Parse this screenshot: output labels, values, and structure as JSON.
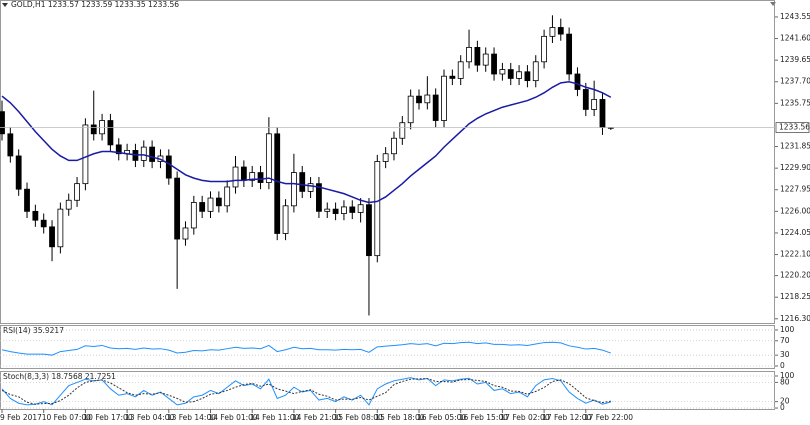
{
  "chart_data": [
    {
      "type": "candlestick",
      "title": "GOLD,H1 1233.57 1233.59 1233.35 1233.56",
      "categories": [
        "9 Feb 2017",
        null,
        null,
        null,
        null,
        "10 Feb 07:00",
        null,
        null,
        null,
        null,
        "10 Feb 17:00",
        null,
        null,
        null,
        null,
        "13 Feb 04:00",
        null,
        null,
        null,
        null,
        "13 Feb 14:00",
        null,
        null,
        null,
        null,
        "14 Feb 01:00",
        null,
        null,
        null,
        null,
        "14 Feb 11:00",
        null,
        null,
        null,
        null,
        "14 Feb 21:00",
        null,
        null,
        null,
        null,
        "15 Feb 08:00",
        null,
        null,
        null,
        null,
        "15 Feb 18:00",
        null,
        null,
        null,
        null,
        "16 Feb 05:00",
        null,
        null,
        null,
        null,
        "16 Feb 15:00",
        null,
        null,
        null,
        null,
        "17 Feb 02:00",
        null,
        null,
        null,
        null,
        "17 Feb 12:00",
        null,
        null,
        null,
        null,
        "17 Feb 22:00",
        null,
        null,
        null
      ],
      "open": [
        1235.0,
        1233.0,
        1231.0,
        1228.0,
        1226.0,
        1225.2,
        1224.6,
        1222.8,
        1226.2,
        1227.0,
        1228.5,
        1233.8,
        1233.0,
        1234.2,
        1232.0,
        1231.2,
        1231.5,
        1230.6,
        1231.8,
        1230.5,
        1231.0,
        1229.0,
        1223.5,
        1224.5,
        1226.8,
        1226.0,
        1227.2,
        1226.5,
        1228.2,
        1230.0,
        1228.8,
        1229.5,
        1228.6,
        1233.0,
        1224.0,
        1226.5,
        1229.5,
        1227.8,
        1228.5,
        1226.0,
        1226.2,
        1225.8,
        1226.4,
        1225.9,
        1226.6,
        1222.0,
        1230.5,
        1231.2,
        1232.6,
        1234.0,
        1236.4,
        1235.8,
        1236.5,
        1234.2,
        1238.2,
        1238.0,
        1239.5,
        1240.8,
        1239.2,
        1240.2,
        1238.4,
        1238.8,
        1238.0,
        1238.6,
        1237.8,
        1239.5,
        1241.8,
        1242.6,
        1242.0,
        1238.4,
        1237.0,
        1235.2,
        1236.1,
        1233.57
      ],
      "high": [
        1236.0,
        1233.6,
        1231.6,
        1228.6,
        1226.6,
        1225.8,
        1225.2,
        1226.8,
        1227.6,
        1229.1,
        1234.4,
        1236.9,
        1234.8,
        1234.8,
        1232.6,
        1232.1,
        1232.1,
        1232.4,
        1232.4,
        1231.6,
        1231.6,
        1229.6,
        1225.1,
        1227.4,
        1227.4,
        1227.8,
        1227.8,
        1228.8,
        1231.0,
        1230.6,
        1230.1,
        1230.1,
        1234.5,
        1233.6,
        1227.1,
        1231.2,
        1230.1,
        1229.1,
        1229.1,
        1226.8,
        1226.8,
        1227.0,
        1227.0,
        1227.2,
        1227.2,
        1231.1,
        1231.8,
        1233.2,
        1234.6,
        1237.0,
        1237.0,
        1238.2,
        1237.1,
        1238.8,
        1238.8,
        1240.1,
        1242.4,
        1241.4,
        1240.8,
        1240.8,
        1239.4,
        1239.4,
        1239.2,
        1239.2,
        1240.1,
        1242.4,
        1243.7,
        1243.4,
        1242.6,
        1239.0,
        1237.6,
        1237.8,
        1236.7,
        1233.59
      ],
      "low": [
        1232.4,
        1230.4,
        1227.4,
        1225.4,
        1224.6,
        1224.0,
        1221.5,
        1222.2,
        1225.6,
        1226.4,
        1227.9,
        1232.4,
        1232.4,
        1231.4,
        1230.6,
        1230.6,
        1230.0,
        1230.0,
        1229.9,
        1229.9,
        1228.4,
        1219.0,
        1222.9,
        1223.9,
        1225.4,
        1225.4,
        1225.9,
        1225.9,
        1227.6,
        1228.2,
        1228.2,
        1228.0,
        1228.0,
        1223.4,
        1223.4,
        1225.9,
        1227.2,
        1227.2,
        1225.4,
        1225.4,
        1225.2,
        1225.2,
        1225.3,
        1225.0,
        1216.6,
        1221.4,
        1229.9,
        1230.6,
        1232.0,
        1233.4,
        1235.2,
        1235.2,
        1233.6,
        1233.6,
        1237.4,
        1237.4,
        1238.9,
        1238.6,
        1238.6,
        1237.8,
        1237.8,
        1237.4,
        1237.4,
        1237.2,
        1237.2,
        1238.9,
        1241.2,
        1241.4,
        1237.8,
        1236.4,
        1234.6,
        1234.6,
        1232.9,
        1233.35
      ],
      "close": [
        1233.0,
        1231.0,
        1228.0,
        1226.0,
        1225.2,
        1224.6,
        1222.8,
        1226.2,
        1227.0,
        1228.5,
        1233.8,
        1233.0,
        1234.2,
        1232.0,
        1231.2,
        1231.5,
        1230.6,
        1231.8,
        1230.5,
        1231.0,
        1229.0,
        1223.5,
        1224.5,
        1226.8,
        1226.0,
        1227.2,
        1226.5,
        1228.2,
        1230.0,
        1228.8,
        1229.5,
        1228.6,
        1233.0,
        1224.0,
        1226.5,
        1229.5,
        1227.8,
        1228.5,
        1226.0,
        1226.2,
        1225.8,
        1226.4,
        1225.9,
        1226.6,
        1222.0,
        1230.5,
        1231.2,
        1232.6,
        1234.0,
        1236.4,
        1235.8,
        1236.5,
        1234.2,
        1238.2,
        1238.0,
        1239.5,
        1240.8,
        1239.2,
        1240.2,
        1238.4,
        1238.8,
        1238.0,
        1238.6,
        1237.8,
        1239.5,
        1241.8,
        1242.6,
        1242.0,
        1238.4,
        1237.0,
        1235.2,
        1236.1,
        1233.57,
        1233.56
      ],
      "up_color": "#ffffff",
      "down_color": "#000000",
      "outline_color": "#000000",
      "ma": {
        "color": "#1a1aa6",
        "values": [
          1236.4,
          1235.8,
          1235.0,
          1234.1,
          1233.2,
          1232.4,
          1231.6,
          1231.0,
          1230.6,
          1230.6,
          1230.9,
          1231.2,
          1231.4,
          1231.4,
          1231.3,
          1231.2,
          1231.1,
          1231.1,
          1230.9,
          1230.7,
          1230.3,
          1229.8,
          1229.3,
          1229.0,
          1228.8,
          1228.7,
          1228.7,
          1228.7,
          1228.8,
          1228.8,
          1228.9,
          1228.9,
          1229.0,
          1228.7,
          1228.5,
          1228.5,
          1228.4,
          1228.3,
          1228.2,
          1228.0,
          1227.8,
          1227.6,
          1227.3,
          1227.0,
          1226.8,
          1226.9,
          1227.3,
          1227.9,
          1228.5,
          1229.2,
          1229.8,
          1230.4,
          1231.0,
          1231.8,
          1232.5,
          1233.2,
          1233.9,
          1234.4,
          1234.8,
          1235.1,
          1235.4,
          1235.6,
          1235.8,
          1236.0,
          1236.3,
          1236.7,
          1237.2,
          1237.6,
          1237.7,
          1237.5,
          1237.2,
          1237.0,
          1236.7,
          1236.3
        ]
      },
      "last_price": 1233.56,
      "ylim": [
        1215.92,
        1245.08
      ],
      "yticks": [
        1243.55,
        {
          "value": 1241.6,
          "label": "1241.60"
        },
        1239.65,
        {
          "value": 1237.7,
          "label": "1237.70"
        },
        1235.75,
        1231.85,
        {
          "value": 1229.9,
          "label": "1229.90"
        },
        1227.95,
        {
          "value": 1226.0,
          "label": "1226.00"
        },
        1224.05,
        {
          "value": 1222.1,
          "label": "1222.10"
        },
        {
          "value": 1220.2,
          "label": "1220.20"
        },
        1218.25,
        {
          "value": 1216.3,
          "label": "1216.30"
        }
      ],
      "grid": false
    },
    {
      "type": "line",
      "title": "RSI(14) 35.9217",
      "series": [
        {
          "color": "#1e90ff",
          "values": [
            45,
            40,
            36,
            33,
            33,
            33,
            30,
            40,
            43,
            46,
            56,
            54,
            57,
            50,
            48,
            49,
            46,
            50,
            47,
            48,
            44,
            36,
            38,
            43,
            42,
            45,
            44,
            48,
            52,
            49,
            50,
            48,
            57,
            40,
            45,
            52,
            48,
            49,
            45,
            45,
            44,
            46,
            45,
            46,
            38,
            53,
            55,
            57,
            59,
            62,
            60,
            62,
            56,
            63,
            62,
            65,
            66,
            62,
            64,
            60,
            60,
            58,
            59,
            57,
            61,
            65,
            66,
            64,
            56,
            52,
            47,
            49,
            44,
            35.9217
          ]
        }
      ],
      "ylim": [
        -5.6,
        111
      ],
      "yticks": [
        100,
        70,
        30,
        0
      ],
      "grid": true
    },
    {
      "type": "line",
      "title": "Stoch(8,3,3) 18.7568 21.7251",
      "series": [
        {
          "color": "#1e90ff",
          "dashed": false,
          "values": [
            60,
            30,
            15,
            10,
            12,
            20,
            10,
            40,
            70,
            80,
            90,
            85,
            88,
            60,
            40,
            45,
            35,
            55,
            40,
            50,
            30,
            10,
            15,
            35,
            40,
            55,
            45,
            65,
            85,
            70,
            75,
            60,
            90,
            30,
            40,
            65,
            50,
            55,
            25,
            30,
            20,
            35,
            25,
            40,
            10,
            60,
            75,
            85,
            90,
            95,
            88,
            92,
            70,
            88,
            85,
            90,
            93,
            75,
            80,
            55,
            60,
            45,
            50,
            35,
            70,
            88,
            92,
            85,
            50,
            30,
            15,
            25,
            12,
            18.7568
          ]
        },
        {
          "color": "#333333",
          "dashed": true,
          "values": [
            55,
            42,
            35,
            18,
            12,
            14,
            14,
            23,
            40,
            63,
            80,
            85,
            88,
            78,
            63,
            48,
            40,
            45,
            43,
            48,
            40,
            30,
            18,
            20,
            30,
            43,
            47,
            55,
            65,
            73,
            77,
            68,
            75,
            60,
            53,
            45,
            52,
            57,
            43,
            37,
            25,
            28,
            27,
            33,
            25,
            37,
            48,
            73,
            83,
            90,
            91,
            92,
            83,
            83,
            81,
            88,
            89,
            86,
            83,
            70,
            65,
            53,
            52,
            43,
            52,
            64,
            83,
            88,
            76,
            55,
            32,
            23,
            17,
            21.7251
          ]
        }
      ],
      "ylim": [
        -3,
        112.5
      ],
      "yticks": [
        100,
        80,
        20,
        0
      ],
      "grid": true
    }
  ]
}
